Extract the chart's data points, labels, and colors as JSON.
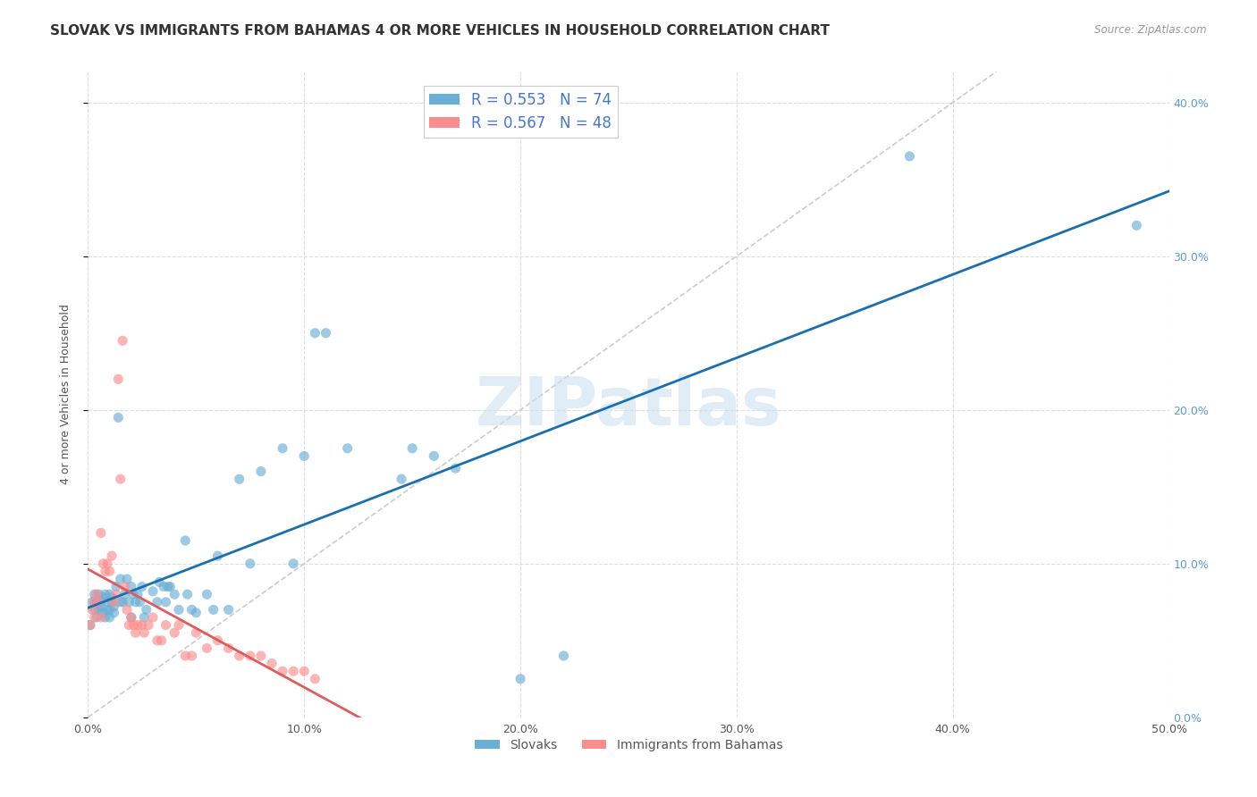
{
  "title": "SLOVAK VS IMMIGRANTS FROM BAHAMAS 4 OR MORE VEHICLES IN HOUSEHOLD CORRELATION CHART",
  "source": "Source: ZipAtlas.com",
  "ylabel_label": "4 or more Vehicles in Household",
  "legend_labels": [
    "Slovaks",
    "Immigrants from Bahamas"
  ],
  "blue_R": 0.553,
  "blue_N": 74,
  "pink_R": 0.567,
  "pink_N": 48,
  "blue_color": "#6baed6",
  "pink_color": "#fc8d8d",
  "trendline_blue": "#1a6faf",
  "trendline_pink": "#e05c5c",
  "trendline_diag": "#cccccc",
  "background_color": "#ffffff",
  "grid_color": "#dddddd",
  "watermark": "ZIPatlas",
  "title_fontsize": 11,
  "axis_label_fontsize": 9,
  "tick_fontsize": 9,
  "xlim": [
    0.0,
    0.5
  ],
  "ylim": [
    0.0,
    0.42
  ],
  "blue_scatter_x": [
    0.001,
    0.002,
    0.003,
    0.003,
    0.004,
    0.004,
    0.005,
    0.005,
    0.006,
    0.006,
    0.007,
    0.007,
    0.008,
    0.008,
    0.009,
    0.009,
    0.01,
    0.01,
    0.01,
    0.011,
    0.011,
    0.012,
    0.012,
    0.013,
    0.014,
    0.015,
    0.015,
    0.016,
    0.017,
    0.018,
    0.019,
    0.02,
    0.02,
    0.021,
    0.022,
    0.023,
    0.024,
    0.025,
    0.026,
    0.027,
    0.03,
    0.032,
    0.033,
    0.035,
    0.036,
    0.037,
    0.038,
    0.04,
    0.042,
    0.045,
    0.046,
    0.048,
    0.05,
    0.055,
    0.058,
    0.06,
    0.065,
    0.07,
    0.075,
    0.08,
    0.09,
    0.095,
    0.1,
    0.105,
    0.11,
    0.12,
    0.145,
    0.15,
    0.16,
    0.17,
    0.2,
    0.22,
    0.38,
    0.485
  ],
  "blue_scatter_y": [
    0.06,
    0.075,
    0.07,
    0.08,
    0.065,
    0.075,
    0.07,
    0.08,
    0.075,
    0.072,
    0.068,
    0.078,
    0.065,
    0.08,
    0.07,
    0.075,
    0.07,
    0.08,
    0.065,
    0.075,
    0.078,
    0.072,
    0.068,
    0.085,
    0.195,
    0.075,
    0.09,
    0.075,
    0.08,
    0.09,
    0.075,
    0.085,
    0.065,
    0.08,
    0.075,
    0.08,
    0.075,
    0.085,
    0.065,
    0.07,
    0.082,
    0.075,
    0.088,
    0.085,
    0.075,
    0.085,
    0.085,
    0.08,
    0.07,
    0.115,
    0.08,
    0.07,
    0.068,
    0.08,
    0.07,
    0.105,
    0.07,
    0.155,
    0.1,
    0.16,
    0.175,
    0.1,
    0.17,
    0.25,
    0.25,
    0.175,
    0.155,
    0.175,
    0.17,
    0.162,
    0.025,
    0.04,
    0.365,
    0.32
  ],
  "pink_scatter_x": [
    0.001,
    0.002,
    0.003,
    0.003,
    0.004,
    0.005,
    0.006,
    0.006,
    0.007,
    0.008,
    0.009,
    0.01,
    0.011,
    0.012,
    0.013,
    0.014,
    0.015,
    0.016,
    0.017,
    0.018,
    0.019,
    0.02,
    0.021,
    0.022,
    0.023,
    0.025,
    0.026,
    0.028,
    0.03,
    0.032,
    0.034,
    0.036,
    0.04,
    0.042,
    0.045,
    0.048,
    0.05,
    0.055,
    0.06,
    0.065,
    0.07,
    0.075,
    0.08,
    0.085,
    0.09,
    0.095,
    0.1,
    0.105
  ],
  "pink_scatter_y": [
    0.06,
    0.07,
    0.075,
    0.065,
    0.08,
    0.075,
    0.12,
    0.065,
    0.1,
    0.095,
    0.1,
    0.095,
    0.105,
    0.075,
    0.08,
    0.22,
    0.155,
    0.245,
    0.085,
    0.07,
    0.06,
    0.065,
    0.06,
    0.055,
    0.06,
    0.06,
    0.055,
    0.06,
    0.065,
    0.05,
    0.05,
    0.06,
    0.055,
    0.06,
    0.04,
    0.04,
    0.055,
    0.045,
    0.05,
    0.045,
    0.04,
    0.04,
    0.04,
    0.035,
    0.03,
    0.03,
    0.03,
    0.025
  ]
}
